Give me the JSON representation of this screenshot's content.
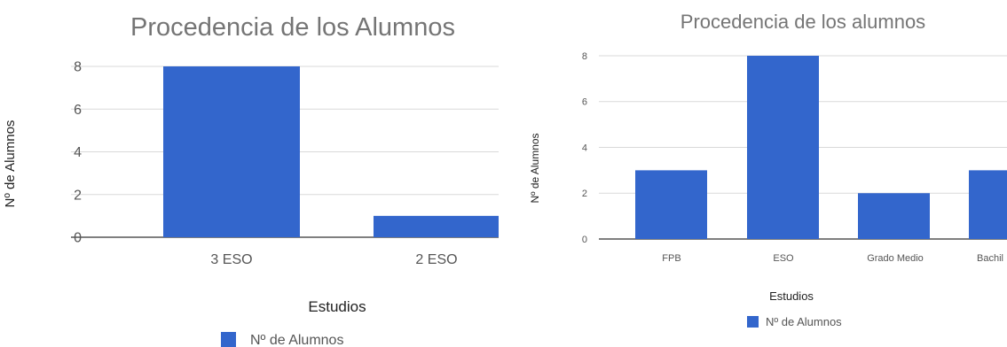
{
  "chart_data": [
    {
      "type": "bar",
      "title": "Procedencia de los Alumnos",
      "categories": [
        "3 ESO",
        "2 ESO"
      ],
      "series": [
        {
          "name": "Nº de Alumnos",
          "values": [
            8,
            1
          ]
        }
      ],
      "xlabel": "Estudios",
      "ylabel": "Nº de Alumnos",
      "ylim": [
        0,
        8
      ],
      "yticks": [
        "0",
        "2",
        "4",
        "6",
        "8"
      ],
      "grid": true,
      "legend": "bottom",
      "color": "#3366CC"
    },
    {
      "type": "bar",
      "title": "Procedencia de los alumnos",
      "categories": [
        "FPB",
        "ESO",
        "Grado Medio",
        "Bachil"
      ],
      "series": [
        {
          "name": "Nº de Alumnos",
          "values": [
            3,
            8,
            2,
            3
          ]
        }
      ],
      "xlabel": "Estudios",
      "ylabel": "Nº de Alumnos",
      "ylim": [
        0,
        8
      ],
      "yticks": [
        "0",
        "2",
        "4",
        "6",
        "8"
      ],
      "grid": true,
      "legend": "bottom",
      "color": "#3366CC"
    }
  ]
}
